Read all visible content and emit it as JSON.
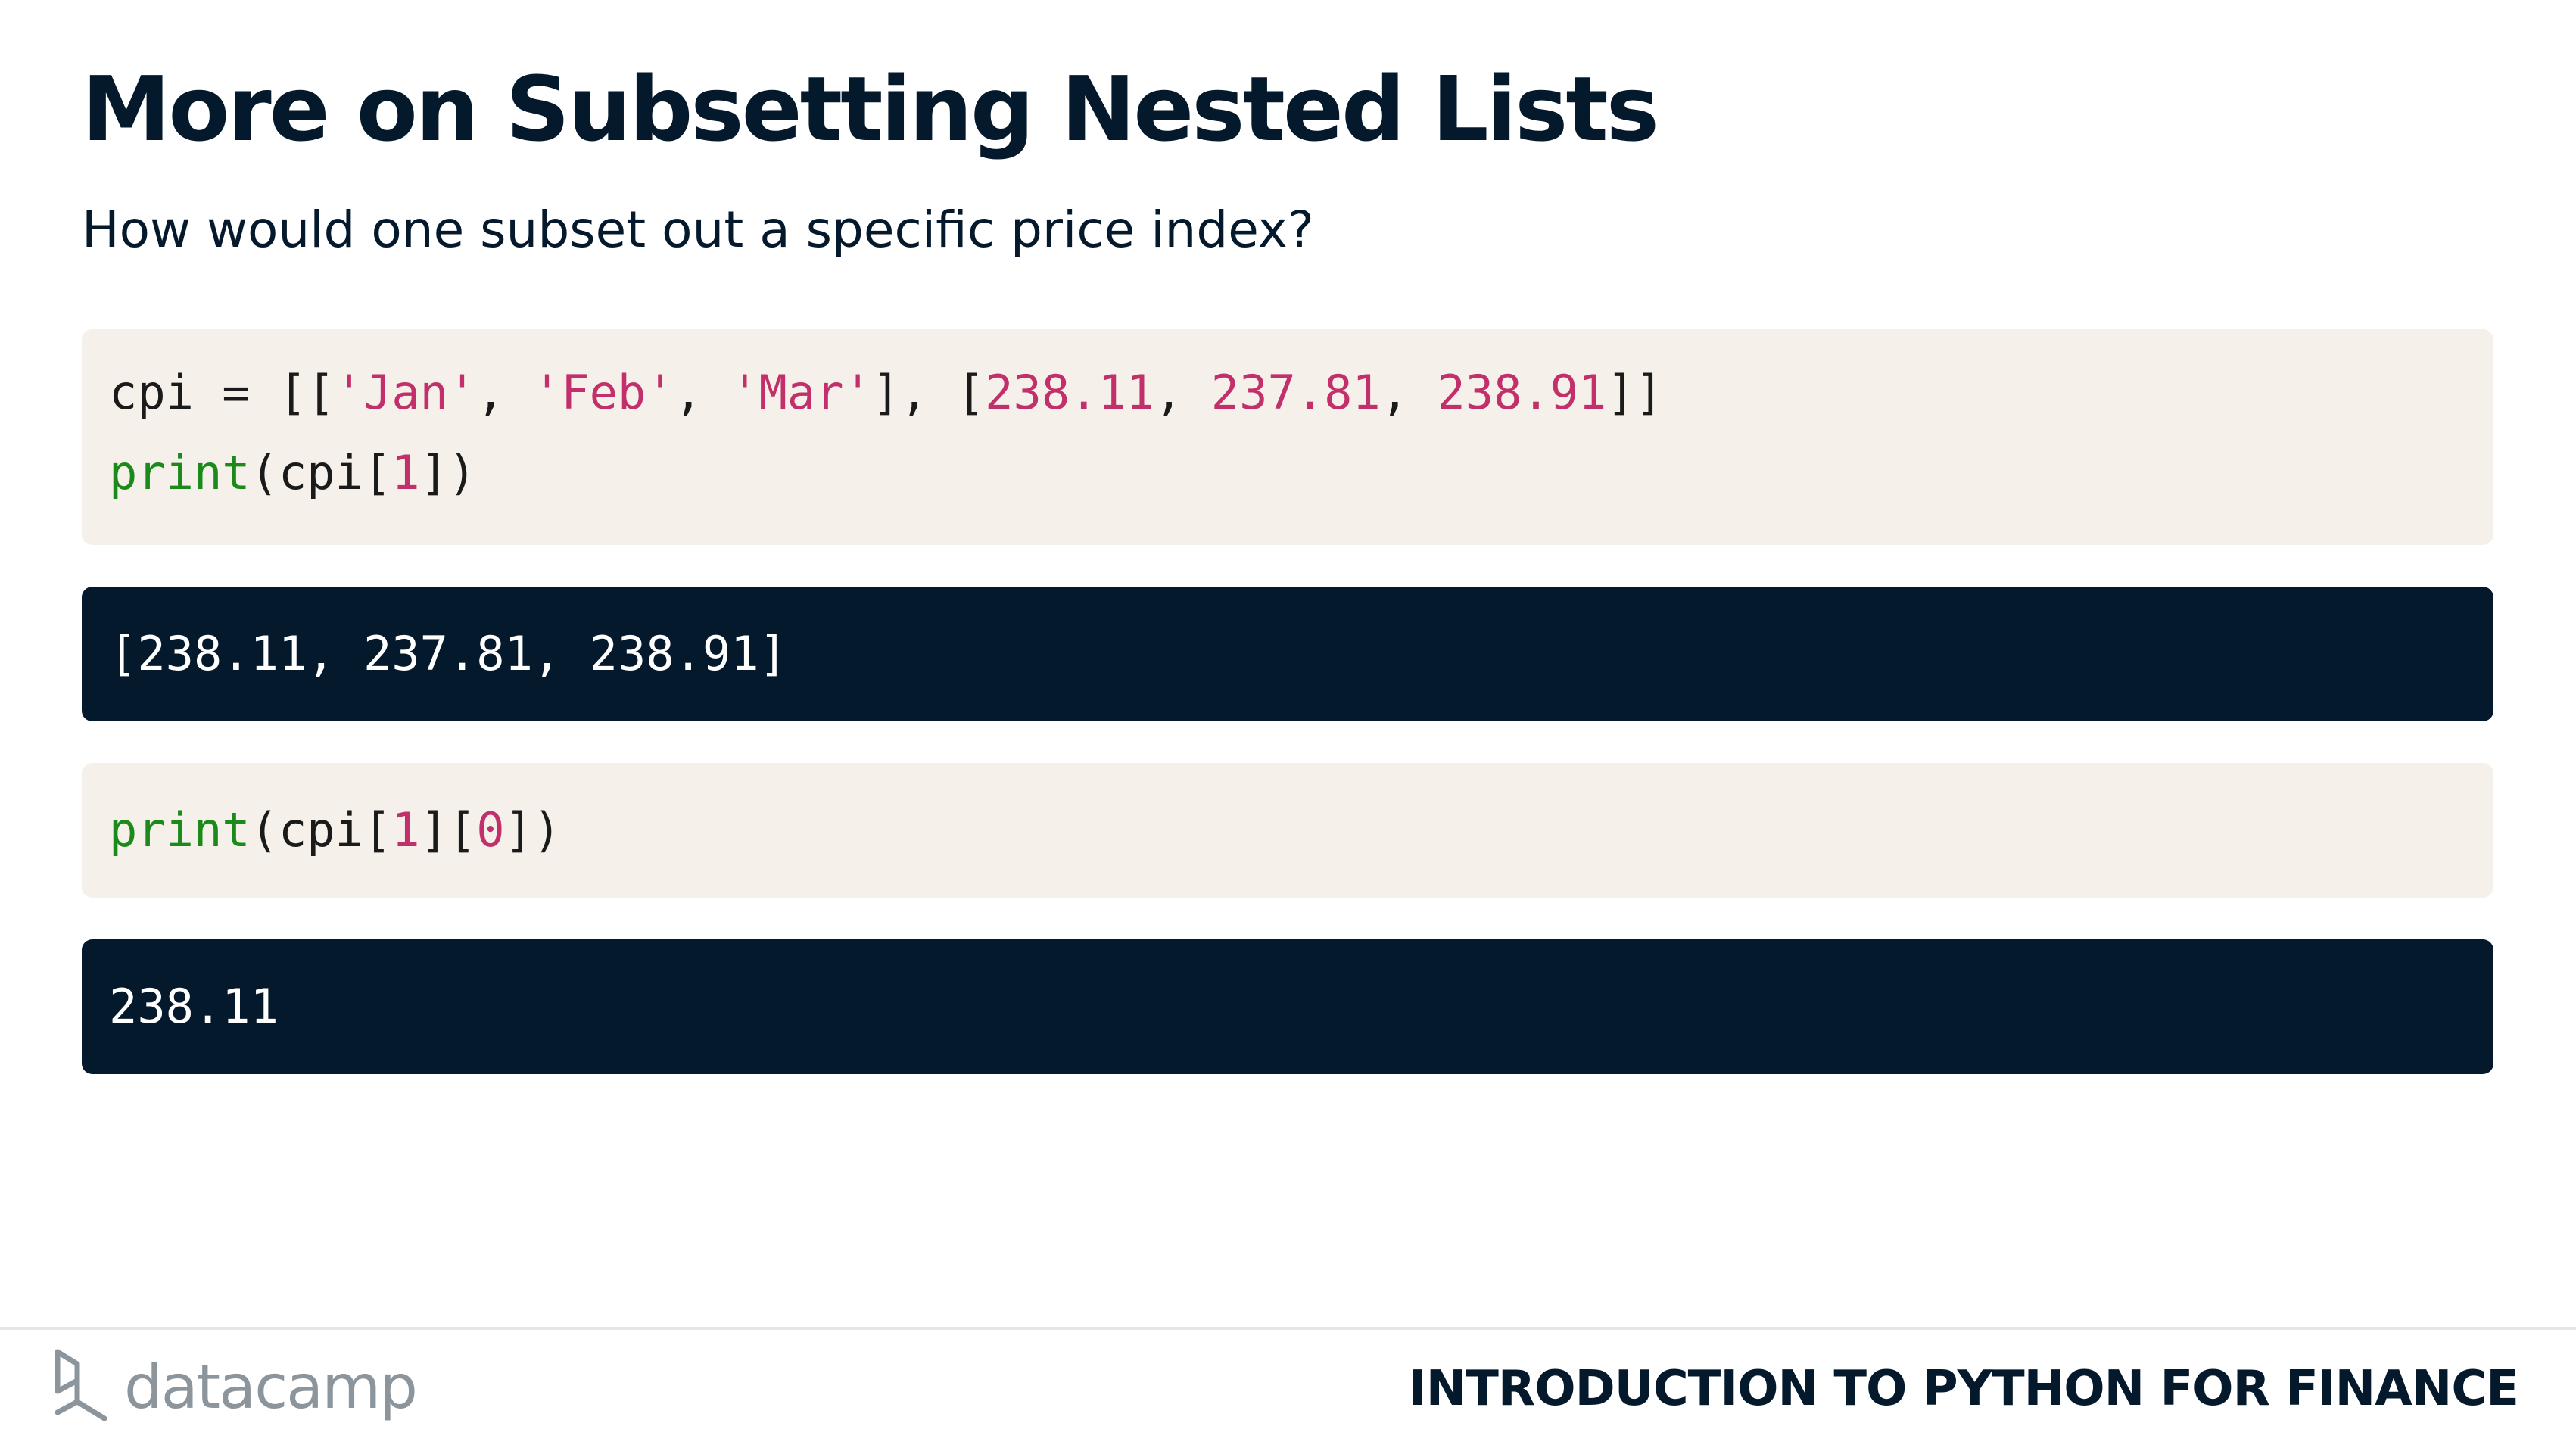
{
  "slide": {
    "title": "More on Subsetting Nested Lists",
    "subtitle": "How would one subset out a specific price index?"
  },
  "code_blocks": [
    {
      "kind": "input",
      "lines": [
        {
          "tokens": [
            {
              "text": "cpi = [[",
              "type": "plain"
            },
            {
              "text": "'Jan'",
              "type": "string"
            },
            {
              "text": ", ",
              "type": "plain"
            },
            {
              "text": "'Feb'",
              "type": "string"
            },
            {
              "text": ", ",
              "type": "plain"
            },
            {
              "text": "'Mar'",
              "type": "string"
            },
            {
              "text": "], [",
              "type": "plain"
            },
            {
              "text": "238.11",
              "type": "number"
            },
            {
              "text": ", ",
              "type": "plain"
            },
            {
              "text": "237.81",
              "type": "number"
            },
            {
              "text": ", ",
              "type": "plain"
            },
            {
              "text": "238.91",
              "type": "number"
            },
            {
              "text": "]]",
              "type": "plain"
            }
          ]
        },
        {
          "tokens": [
            {
              "text": "print",
              "type": "keyword"
            },
            {
              "text": "(cpi[",
              "type": "plain"
            },
            {
              "text": "1",
              "type": "number"
            },
            {
              "text": "])",
              "type": "plain"
            }
          ]
        }
      ]
    },
    {
      "kind": "output",
      "lines": [
        {
          "tokens": [
            {
              "text": "[238.11, 237.81, 238.91]",
              "type": "plain"
            }
          ]
        }
      ]
    },
    {
      "kind": "input",
      "lines": [
        {
          "tokens": [
            {
              "text": "print",
              "type": "keyword"
            },
            {
              "text": "(cpi[",
              "type": "plain"
            },
            {
              "text": "1",
              "type": "number"
            },
            {
              "text": "][",
              "type": "plain"
            },
            {
              "text": "0",
              "type": "number"
            },
            {
              "text": "])",
              "type": "plain"
            }
          ]
        }
      ]
    },
    {
      "kind": "output",
      "lines": [
        {
          "tokens": [
            {
              "text": "238.11",
              "type": "plain"
            }
          ]
        }
      ]
    }
  ],
  "footer": {
    "logo_text": "datacamp",
    "course_title": "INTRODUCTION TO PYTHON FOR FINANCE"
  },
  "colors": {
    "title": "#05192d",
    "code_input_bg": "#f5f1ea",
    "code_output_bg": "#05192d",
    "keyword": "#1b8a1b",
    "string_number": "#c2306b",
    "logo_gray": "#8c959c"
  },
  "icons": {
    "logo": "datacamp-logo-icon"
  }
}
